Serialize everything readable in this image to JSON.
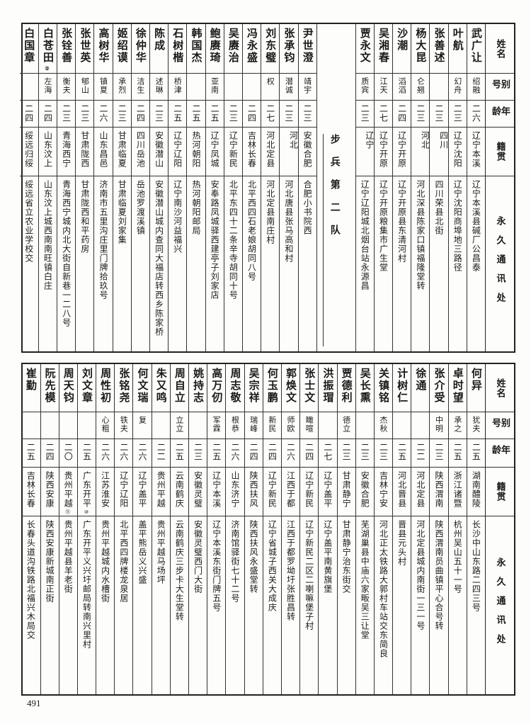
{
  "header": {
    "name": "姓名",
    "alias": "别号",
    "age": "年龄",
    "native": "籍贯",
    "address": "永久通讯处"
  },
  "top": {
    "section_label": "步兵第二队",
    "people_right": [
      {
        "name": "武广让",
        "alias": "绍融",
        "age": "二六",
        "native": "辽宁本溪",
        "address": "辽宁本溪县碱厂公昌泰"
      },
      {
        "name": "叶航",
        "alias": "幻舟",
        "age": "二三",
        "native": "辽宁沈阳",
        "address": "辽宁沈阳商埠地三路径"
      },
      {
        "name": "张善述",
        "alias": "",
        "age": "二三",
        "native": "四川",
        "address": "四川荣县北街"
      },
      {
        "name": "杨大昆",
        "alias": "仑翘",
        "age": "二三",
        "native": "河北",
        "address": "河北深县陈家口镇福隆堂转"
      },
      {
        "name": "沙潮",
        "alias": "滔滔",
        "age": "二四",
        "native": "辽宁开原",
        "address": "辽宁开原县东清河村"
      },
      {
        "name": "吴湘春",
        "alias": "江天",
        "age": "二七",
        "native": "辽宁开原",
        "address": "辽宁开原粮集市广生堂"
      },
      {
        "name": "贾永文",
        "alias": "质宾",
        "age": "二三",
        "native": "辽宁",
        "address": "辽宁辽阳城北烟台站永源昌"
      }
    ],
    "people_left": [
      {
        "name": "尹世澄",
        "alias": "靖宇",
        "age": "二三",
        "native": "安徽合肥",
        "address": "合肥小书院西"
      },
      {
        "name": "张承钧",
        "alias": "潜诚",
        "age": "二三",
        "native": "河北",
        "address": "河北唐县张马高和村"
      },
      {
        "name": "刘东璧",
        "alias": "权",
        "age": "二七",
        "native": "河北定县",
        "address": "河北定县南庄村"
      },
      {
        "name": "冯永盛",
        "alias": "",
        "age": "二四",
        "native": "吉林长春",
        "address": "北平西四石老娘胡同八号"
      },
      {
        "name": "吴赓治",
        "alias": "",
        "age": "二三",
        "native": "辽宁新民",
        "address": "北平东四十二条辛寺胡同十号"
      },
      {
        "name": "鲍赓琦",
        "alias": "亚南",
        "age": "二五",
        "native": "辽宁凤城",
        "address": "安奉路凤城驿西建亭子刘家店"
      },
      {
        "name": "韩国杰",
        "alias": "",
        "age": "二五",
        "native": "热河朝阳",
        "address": "热河朝阳邮局"
      },
      {
        "name": "石树楷",
        "alias": "桥津",
        "age": "二五",
        "native": "辽宁辽阳",
        "address": "辽宁南沙河益福兴"
      },
      {
        "name": "陈成",
        "alias": "述琳",
        "age": "二三",
        "native": "安徽潜山",
        "address": "安徽潜山城内查同大福店转西乡陈家桥"
      },
      {
        "name": "徐仲华",
        "alias": "洁生",
        "age": "二四",
        "native": "四川岳池",
        "address": "岳池罗渡溪镇"
      },
      {
        "name": "姬绍谟",
        "alias": "承烈",
        "age": "二三",
        "native": "甘肃临夏",
        "address": "甘肃临夏刘家集"
      },
      {
        "name": "高树华",
        "alias": "镇夏",
        "age": "二六",
        "native": "山东昌邑",
        "address": "济南市五里沟庄里门牌拾玖号"
      },
      {
        "name": "张世英",
        "alias": "郇山",
        "age": "二三",
        "native": "甘肃陇西",
        "address": "甘肃陇西和平药房"
      },
      {
        "name": "张铨善",
        "alias": "衡夫",
        "age": "二三",
        "native": "青海西宁",
        "address": "青海西宁城内北大街自新巷一二八号"
      },
      {
        "name": "白苍田",
        "name_note": "②",
        "alias": "左海",
        "age": "二四",
        "native": "山东汶上",
        "address": "山东汶上城西南南旺镇白庄"
      },
      {
        "name": "白国章",
        "alias": "",
        "age": "二四",
        "native": "绥远归绥",
        "address": "绥远省立农业学校交"
      }
    ]
  },
  "bottom": {
    "people": [
      {
        "name": "何异",
        "alias": "犹夫",
        "age": "二五",
        "native": "湖南醴陵",
        "address": "长沙中山东路二四三号"
      },
      {
        "name": "卓时望",
        "alias": "承之",
        "age": "二五",
        "native": "浙江诸暨",
        "address": "杭州吴山五十一号"
      },
      {
        "name": "张介受",
        "alias": "中明",
        "age": "二三",
        "native": "陕西渭南",
        "address": "陕西渭南员曲镇平心合号转"
      },
      {
        "name": "徐通",
        "alias": "",
        "age": "二二",
        "native": "河北定县",
        "address": "河北定县城内南街一三一号"
      },
      {
        "name": "计树仁",
        "alias": "",
        "age": "二五",
        "native": "河北晋县",
        "address": "晋县元头村"
      },
      {
        "name": "关镇铭",
        "alias": "杰秋",
        "age": "二三",
        "native": "吉林宁安",
        "address": "河北正太铁路大郭村车站交东简良"
      },
      {
        "name": "吴长熏",
        "alias": "",
        "age": "二三",
        "native": "安徽合肥",
        "address": "芜湖巢县中庙六家畈吴三让堂"
      },
      {
        "name": "贾德利",
        "alias": "德立",
        "age": "二三",
        "native": "甘肃静宁",
        "address": "甘肃静宁治东街交"
      },
      {
        "name": "洪振瑁",
        "alias": "",
        "age": "二七",
        "native": "辽宁盖平",
        "address": "辽宁盖平南黄旗堡"
      },
      {
        "name": "张士文",
        "alias": "瞰喧",
        "age": "二四",
        "native": "辽宁新民",
        "address": "辽宁新民二区二喇嘛堡子村"
      },
      {
        "name": "郭焕文",
        "alias": "师欧",
        "age": "二六",
        "native": "江西于都",
        "address": "江西于都罗坳圩张胜昌转"
      },
      {
        "name": "何玉鹏",
        "alias": "新民",
        "age": "二四",
        "native": "辽宁新民",
        "address": "辽宁省城子西关大成庆"
      },
      {
        "name": "吴宗祥",
        "alias": "瑞峰",
        "age": "二四",
        "native": "陕西扶风",
        "address": "陕西扶风永盛堂转"
      },
      {
        "name": "周志敬",
        "alias": "根恭",
        "age": "二六",
        "native": "山东济宁",
        "address": "济南馆驿街七十二号"
      },
      {
        "name": "高万仞",
        "alias": "军霖",
        "age": "二五",
        "native": "辽宁本溪",
        "address": "辽宁本溪东街门牌五号"
      },
      {
        "name": "姚持志",
        "alias": "",
        "age": "二三",
        "native": "安徽灵璧",
        "address": "安徽灵璧西门大街"
      },
      {
        "name": "周自立",
        "alias": "立立",
        "age": "二五",
        "native": "云南鹤庆",
        "address": "云南鹤庆三步卡大生堂转"
      },
      {
        "name": "朱又鸣",
        "alias": "",
        "age": "二二",
        "native": "贵州平越",
        "address": "贵州平越马场坪"
      },
      {
        "name": "何文瑞",
        "alias": "复",
        "age": "二六",
        "native": "辽宁盖平",
        "address": "盖平熊岳义兴盛"
      },
      {
        "name": "张铭尧",
        "alias": "铁夫",
        "age": "二六",
        "native": "辽宁辽阳",
        "address": "北平西四牌楼龙泉居"
      },
      {
        "name": "周性初",
        "alias": "心粗",
        "age": "二六",
        "native": "江苏淮安",
        "address": "贵州平越城内水槽街"
      },
      {
        "name": "刘文章",
        "alias": "",
        "age": "二五",
        "native": "广东开平",
        "native_note": "⑩",
        "address": "广东开平义兴圩邮局转南兴里村"
      },
      {
        "name": "周天钧",
        "alias": "",
        "age": "二〇",
        "native": "贵州平越",
        "native_note": "⑪",
        "address": "贵州平越县羊老街"
      },
      {
        "name": "阮先模",
        "alias": "",
        "age": "二四",
        "native": "陕西安康",
        "address": "陕西安康新城南正街"
      },
      {
        "name": "崔勤",
        "alias": "",
        "age": "二五",
        "native": "吉林长春",
        "address": "长春头道沟铁路北福兴木局交"
      }
    ]
  },
  "page_number": "491"
}
